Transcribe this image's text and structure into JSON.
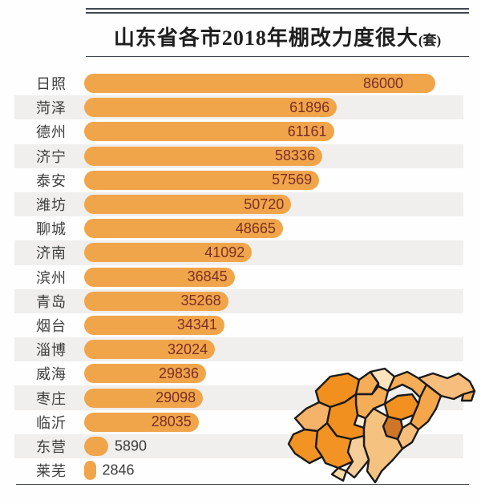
{
  "title": {
    "text": "山东省各市2018年棚改力度很大",
    "unit_suffix": "(套)"
  },
  "chart_data": {
    "type": "bar",
    "orientation": "horizontal",
    "title": "山东省各市2018年棚改力度很大(套)",
    "categories": [
      "日照",
      "菏泽",
      "德州",
      "济宁",
      "泰安",
      "潍坊",
      "聊城",
      "济南",
      "滨州",
      "青岛",
      "烟台",
      "淄博",
      "威海",
      "枣庄",
      "临沂",
      "东营",
      "莱芜"
    ],
    "values": [
      86000,
      61896,
      61161,
      58336,
      57569,
      50720,
      48665,
      41092,
      36845,
      35268,
      34341,
      32024,
      29836,
      29098,
      28035,
      5890,
      2846
    ],
    "xlabel": "",
    "ylabel": "",
    "xlim": [
      0,
      86000
    ],
    "value_labels_shown": true,
    "grid": false,
    "legend": "none",
    "striped_rows": true
  },
  "map": {
    "name": "shandong-province-map",
    "palette": [
      "#F1901E",
      "#F5B269",
      "#F5AD57",
      "#FAE3BD",
      "#FBEBD0",
      "#F2911F",
      "#F6BD7C",
      "#F5A64A",
      "#CE7526",
      "#F6C280",
      "#F29324",
      "#F5CE9A",
      "#FAD9A8"
    ]
  },
  "theme": {
    "bar_color": "#F1A54B",
    "band_color": "#F0EFED",
    "value_in_color": "#7A2F26",
    "text_color": "#3D3D3D",
    "rule_color": "#41464E",
    "map_outline": "#1A1A1A"
  }
}
